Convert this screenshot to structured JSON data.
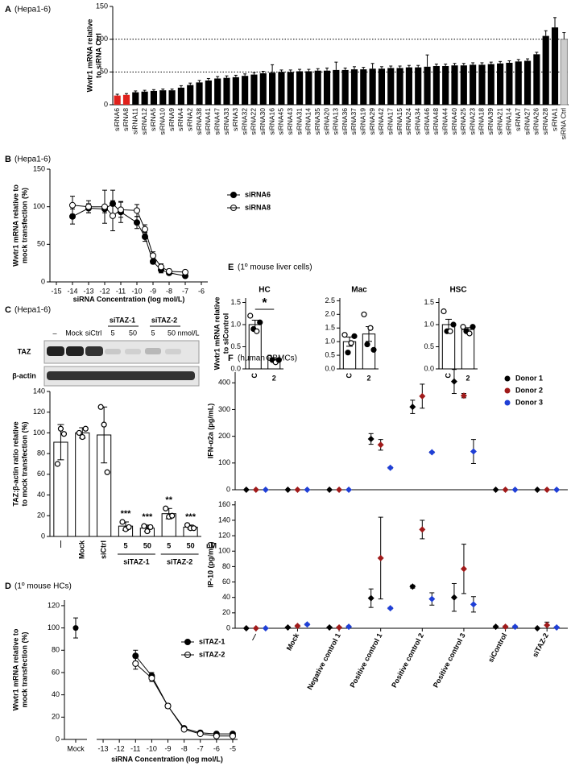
{
  "chart_data": [
    {
      "type": "bar",
      "panel": "A",
      "subtitle": "(Hepa1-6)",
      "ylabel": [
        "Wwtr1 mRNA relative",
        "to siRNA Ctrl"
      ],
      "categories": [
        "siRNA6",
        "siRNA8",
        "siRNA11",
        "siRNA12",
        "siRNA5",
        "siRNA10",
        "siRNA9",
        "siRNA4",
        "siRNA2",
        "siRNA38",
        "siRNA41",
        "siRNA47",
        "siRNA33",
        "siRNA3",
        "siRNA32",
        "siRNA22",
        "siRNA30",
        "siRNA16",
        "siRNA45",
        "siRNA43",
        "siRNA31",
        "siRNA14",
        "siRNA35",
        "siRNA20",
        "siRNA13",
        "siRNA36",
        "siRNA37",
        "siRNA19",
        "siRNA29",
        "siRNA42",
        "siRNA17",
        "siRNA15",
        "siRNA24",
        "siRNA34",
        "siRNA46",
        "siRNA48",
        "siRNA44",
        "siRNA40",
        "siRNA25",
        "siRNA23",
        "siRNA18",
        "siRNA39",
        "siRNA21",
        "siRNA14",
        "siRNA7",
        "siRNA27",
        "siRNA26",
        "siRNA28",
        "siRNA1",
        "siRNA Ctrl"
      ],
      "values": [
        14,
        15,
        19,
        20,
        21,
        22,
        22,
        26,
        30,
        34,
        37,
        40,
        41,
        42,
        44,
        46,
        48,
        49,
        50,
        50,
        51,
        51,
        52,
        52,
        53,
        53,
        54,
        54,
        55,
        55,
        56,
        56,
        57,
        57,
        58,
        59,
        59,
        60,
        60,
        61,
        61,
        62,
        63,
        64,
        66,
        67,
        77,
        105,
        118,
        100
      ],
      "errors": [
        2,
        2,
        2,
        2,
        2,
        2,
        2,
        3,
        3,
        3,
        3,
        3,
        3,
        3,
        3,
        3,
        3,
        12,
        3,
        3,
        3,
        3,
        3,
        4,
        12,
        3,
        4,
        3,
        8,
        3,
        3,
        3,
        3,
        3,
        18,
        3,
        3,
        3,
        3,
        3,
        3,
        3,
        3,
        3,
        3,
        3,
        3,
        8,
        15,
        10
      ],
      "colors": [
        "#e0201b",
        "#e0201b",
        "#000000",
        "#000000",
        "#000000",
        "#000000",
        "#000000",
        "#000000",
        "#000000",
        "#000000",
        "#000000",
        "#000000",
        "#000000",
        "#000000",
        "#000000",
        "#000000",
        "#000000",
        "#000000",
        "#000000",
        "#000000",
        "#000000",
        "#000000",
        "#000000",
        "#000000",
        "#000000",
        "#000000",
        "#000000",
        "#000000",
        "#000000",
        "#000000",
        "#000000",
        "#000000",
        "#000000",
        "#000000",
        "#000000",
        "#000000",
        "#000000",
        "#000000",
        "#000000",
        "#000000",
        "#000000",
        "#000000",
        "#000000",
        "#000000",
        "#000000",
        "#000000",
        "#000000",
        "#000000",
        "#000000",
        "#cccccc"
      ],
      "ylim": [
        0,
        150
      ],
      "yticks": [
        0,
        50,
        100,
        150
      ],
      "reference_lines": [
        50,
        100
      ]
    },
    {
      "type": "line",
      "panel": "B",
      "subtitle": "(Hepa1-6)",
      "ylabel": [
        "Wwtr1 mRNA relative to",
        "mock transfection (%)"
      ],
      "xlabel": "siRNA Concentration (log mol/L)",
      "x": [
        -14,
        -13,
        -12,
        -11.5,
        -11,
        -10,
        -9.5,
        -9,
        -8.5,
        -8,
        -7
      ],
      "series": [
        {
          "name": "siRNA6",
          "color": "#000000",
          "marker": "filled",
          "values": [
            87,
            98,
            97,
            104,
            93,
            79,
            60,
            27,
            16,
            12,
            8
          ],
          "errors": [
            10,
            6,
            5,
            18,
            14,
            8,
            6,
            3,
            4,
            2,
            2
          ]
        },
        {
          "name": "siRNA8",
          "color": "#000000",
          "marker": "open",
          "values": [
            102,
            100,
            100,
            88,
            96,
            95,
            70,
            35,
            20,
            14,
            13
          ],
          "errors": [
            12,
            8,
            22,
            20,
            10,
            8,
            6,
            5,
            4,
            3,
            2
          ]
        }
      ],
      "xlim": [
        -15.4,
        -5.6
      ],
      "xticks": [
        -15,
        -14,
        -13,
        -12,
        -11,
        -10,
        -9,
        -8,
        -7,
        -6
      ],
      "ylim": [
        0,
        150
      ],
      "yticks": [
        0,
        50,
        100,
        150
      ],
      "legend": "right"
    },
    {
      "type": "bar-dots",
      "panel": "C",
      "subtitle": "(Hepa1-6)",
      "blot": {
        "lanes": [
          "–",
          "Mock",
          "siCtrl"
        ],
        "groups": [
          "siTAZ-1",
          "siTAZ-2"
        ],
        "doses": [
          "5",
          "50",
          "5",
          "50 nmol/L"
        ],
        "rows": [
          "TAZ",
          "β-actin"
        ]
      },
      "ylabel": [
        "TAZ:β-actin ratio relative",
        "to mock transfection (%)"
      ],
      "categories": [
        "—",
        "Mock",
        "siCtrl",
        "5",
        "50",
        "5",
        "50"
      ],
      "groups": [
        "siTAZ-1",
        "siTAZ-2"
      ],
      "unit": "nM",
      "values": [
        91,
        100,
        98,
        10,
        8,
        22,
        9
      ],
      "errors": [
        17,
        5,
        27,
        4,
        3,
        5,
        2
      ],
      "points": [
        [
          70,
          104,
          99
        ],
        [
          100,
          96,
          104
        ],
        [
          125,
          108,
          62
        ],
        [
          14,
          7,
          9
        ],
        [
          10,
          5,
          9
        ],
        [
          27,
          19,
          20
        ],
        [
          11,
          8,
          8
        ]
      ],
      "value_annotations": [
        null,
        null,
        null,
        "***",
        "***",
        "**",
        "***"
      ],
      "ylim": [
        0,
        140
      ],
      "yticks": [
        0,
        20,
        40,
        60,
        80,
        100,
        120,
        140
      ]
    },
    {
      "type": "line",
      "panel": "D",
      "subtitle": "(1º mouse HCs)",
      "ylabel": [
        "Wwtr1 mRNA relative to",
        "mock transfection (%)"
      ],
      "xlabel": "siRNA Concentration (log mol/L)",
      "mock": {
        "label": "Mock",
        "value": 100,
        "error": 9
      },
      "x": [
        -11,
        -10,
        -9,
        -8,
        -7,
        -6,
        -5
      ],
      "series": [
        {
          "name": "siTAZ-1",
          "color": "#000000",
          "marker": "filled",
          "values": [
            75,
            57,
            30,
            10,
            6,
            5,
            5
          ],
          "errors": [
            5,
            3,
            2,
            1,
            1,
            1,
            1
          ]
        },
        {
          "name": "siTAZ-2",
          "color": "#000000",
          "marker": "open",
          "values": [
            68,
            55,
            30,
            9,
            5,
            3,
            3
          ],
          "errors": [
            5,
            3,
            2,
            1,
            1,
            1,
            1
          ]
        }
      ],
      "xlim": [
        -13.4,
        -4.7
      ],
      "xticks": [
        -13,
        -12,
        -11,
        -10,
        -9,
        -8,
        -7,
        -6,
        -5
      ],
      "ylim": [
        0,
        125
      ],
      "yticks": [
        0,
        20,
        40,
        60,
        80,
        100,
        120
      ],
      "legend": "upper right"
    },
    {
      "type": "bar-dots",
      "panel": "E",
      "subtitle": "(1º mouse liver cells)",
      "title": "HC",
      "ylabel": [
        "Wwtr1 mRNA relative",
        "to siControl"
      ],
      "categories": [
        "C",
        "2"
      ],
      "values": [
        1.0,
        0.2
      ],
      "errors": [
        0.1,
        0.03
      ],
      "points": [
        [
          1.2,
          0.9,
          0.85,
          1.05
        ],
        [
          0.25,
          0.2,
          0.15,
          0.2
        ]
      ],
      "annotation": "*",
      "ylim": [
        0,
        1.6
      ],
      "yticks": [
        {
          "value": 0,
          "label": "0.0"
        },
        0.5,
        {
          "value": 1,
          "label": "1.0"
        },
        1.5
      ]
    },
    {
      "type": "bar-dots",
      "title": "Mac",
      "categories": [
        "C",
        "2"
      ],
      "values": [
        1.0,
        1.28
      ],
      "errors": [
        0.17,
        0.27
      ],
      "points": [
        [
          1.25,
          0.6,
          0.95,
          1.2
        ],
        [
          2.0,
          0.9,
          1.5,
          0.7
        ]
      ],
      "ylim": [
        0,
        2.6
      ],
      "yticks": [
        {
          "value": 0,
          "label": "0.0"
        },
        0.5,
        {
          "value": 1,
          "label": "1.0"
        },
        1.5,
        {
          "value": 2,
          "label": "2.0"
        },
        2.5
      ]
    },
    {
      "type": "bar-dots",
      "title": "HSC",
      "categories": [
        "C",
        "2"
      ],
      "values": [
        1.0,
        0.89
      ],
      "errors": [
        0.12,
        0.04
      ],
      "points": [
        [
          1.3,
          0.85,
          0.85,
          1.0
        ],
        [
          0.95,
          0.85,
          0.8,
          0.95
        ]
      ],
      "ylim": [
        0,
        1.6
      ],
      "yticks": [
        {
          "value": 0,
          "label": "0.0"
        },
        0.5,
        {
          "value": 1,
          "label": "1.0"
        },
        1.5
      ]
    },
    {
      "type": "dot",
      "panel": "F",
      "subtitle": "(human PBMCs)",
      "ylabel": [
        "IFN-α2a (pg/mL)"
      ],
      "categories": [
        null,
        null,
        null,
        null,
        null,
        null,
        null,
        null
      ],
      "series": [
        {
          "name": "Donor 1",
          "color": "#000000",
          "values": [
            0,
            0,
            0,
            190,
            310,
            405,
            0,
            0
          ],
          "errors": [
            0,
            0,
            0,
            20,
            25,
            45,
            0,
            0
          ]
        },
        {
          "name": "Donor 2",
          "color": "#a01a1a",
          "values": [
            0,
            0,
            0,
            168,
            350,
            352,
            0,
            0
          ],
          "errors": [
            0,
            0,
            0,
            20,
            45,
            8,
            0,
            0
          ]
        },
        {
          "name": "Donor 3",
          "color": "#1f3fd6",
          "values": [
            0,
            0,
            0,
            82,
            140,
            143,
            0,
            0
          ],
          "errors": [
            0,
            0,
            0,
            3,
            3,
            45,
            0,
            0
          ]
        }
      ],
      "ylim": [
        0,
        440
      ],
      "yticks": [
        0,
        100,
        200,
        300,
        400
      ],
      "legend": "upper right"
    },
    {
      "type": "dot",
      "ylabel": [
        "IP-10 (pg/mL)"
      ],
      "categories": [
        "—",
        "Mock",
        "Negative control 1",
        "Positive control 1",
        "Positive control 2",
        "Positive control 3",
        "siControl",
        "siTAZ-2"
      ],
      "series": [
        {
          "color": "#000000",
          "values": [
            0,
            1,
            1,
            39,
            54,
            40,
            2,
            0
          ],
          "errors": [
            0,
            1,
            1,
            12,
            2,
            18,
            1,
            0
          ]
        },
        {
          "color": "#a01a1a",
          "values": [
            0,
            3,
            1,
            91,
            128,
            77,
            2,
            4
          ],
          "errors": [
            0,
            1,
            1,
            53,
            12,
            32,
            1,
            4
          ]
        },
        {
          "color": "#1f3fd6",
          "values": [
            0,
            5,
            2,
            26,
            38,
            31,
            2,
            1
          ],
          "errors": [
            0,
            1,
            1,
            1,
            8,
            10,
            1,
            1
          ]
        }
      ],
      "ylim": [
        0,
        165
      ],
      "yticks": [
        0,
        20,
        40,
        60,
        80,
        100,
        120,
        140,
        160
      ]
    }
  ]
}
